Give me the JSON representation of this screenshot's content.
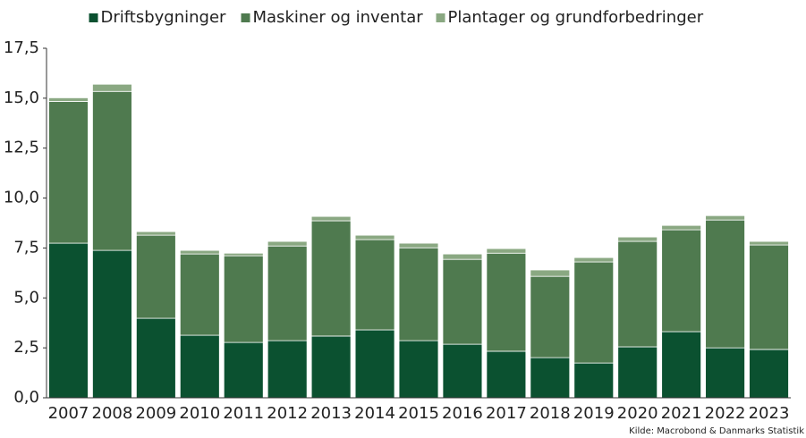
{
  "chart_data": {
    "type": "stacked_bar",
    "categories": [
      "2007",
      "2008",
      "2009",
      "2010",
      "2011",
      "2012",
      "2013",
      "2014",
      "2015",
      "2016",
      "2017",
      "2018",
      "2019",
      "2020",
      "2021",
      "2022",
      "2023"
    ],
    "series": [
      {
        "name": "Driftsbygninger",
        "color": "#0b5130",
        "values": [
          7.74,
          7.38,
          3.98,
          3.13,
          2.77,
          2.86,
          3.09,
          3.4,
          2.86,
          2.68,
          2.33,
          2.01,
          1.74,
          2.55,
          3.31,
          2.5,
          2.42
        ]
      },
      {
        "name": "Maskiner og inventar",
        "color": "#4f7a4f",
        "values": [
          7.1,
          7.96,
          4.16,
          4.07,
          4.34,
          4.74,
          5.77,
          4.52,
          4.65,
          4.25,
          4.91,
          4.07,
          5.06,
          5.28,
          5.1,
          6.4,
          5.23
        ]
      },
      {
        "name": "Plantager og grundforbedringer",
        "color": "#8aa882",
        "values": [
          0.18,
          0.36,
          0.18,
          0.18,
          0.13,
          0.23,
          0.22,
          0.22,
          0.23,
          0.27,
          0.23,
          0.32,
          0.22,
          0.22,
          0.22,
          0.22,
          0.18
        ]
      }
    ],
    "ylim": [
      0,
      17.5
    ],
    "yticks": [
      {
        "value": 0,
        "label": "0,0"
      },
      {
        "value": 2.5,
        "label": "2,5"
      },
      {
        "value": 5,
        "label": "5,0"
      },
      {
        "value": 7.5,
        "label": "7,5"
      },
      {
        "value": 10,
        "label": "10,0"
      },
      {
        "value": 12.5,
        "label": "12,5"
      },
      {
        "value": 15,
        "label": "15,0"
      },
      {
        "value": 17.5,
        "label": "17,5"
      }
    ],
    "legend": "top",
    "source": "Kilde: Macrobond & Danmarks Statistik"
  }
}
